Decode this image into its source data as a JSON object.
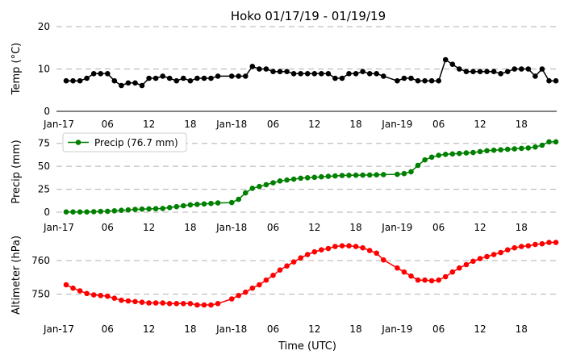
{
  "title": "Hoko 01/17/19 - 01/19/19",
  "x_tick_labels": [
    "Jan-17",
    "06",
    "12",
    "18",
    "Jan-18",
    "06",
    "12",
    "18",
    "Jan-19",
    "06",
    "12",
    "18"
  ],
  "xlabel": "Time (UTC)",
  "colors": {
    "temp": "#000000",
    "precip": "#008000",
    "altimeter": "#ff0000",
    "grid": "#b0b0b0"
  },
  "chart_data": [
    {
      "type": "line",
      "name": "temp",
      "ylabel": "Temp (°C)",
      "ylim": [
        0,
        20
      ],
      "yticks": [
        0,
        10,
        20
      ],
      "x_hours": [
        0,
        1,
        2,
        3,
        4,
        5,
        6,
        7,
        8,
        9,
        10,
        11,
        12,
        13,
        14,
        15,
        16,
        17,
        18,
        19,
        20,
        21,
        22,
        24,
        25,
        26,
        27,
        28,
        29,
        30,
        31,
        32,
        33,
        34,
        35,
        36,
        37,
        38,
        39,
        40,
        41,
        42,
        43,
        44,
        45,
        46,
        48,
        49,
        50,
        51,
        52,
        53,
        54,
        55,
        56,
        57,
        58,
        59,
        60,
        61,
        62,
        63,
        64,
        65,
        66,
        67,
        68,
        69,
        70,
        71
      ],
      "values": [
        7.2,
        7.2,
        7.2,
        7.8,
        8.9,
        8.9,
        8.9,
        7.2,
        6.1,
        6.7,
        6.7,
        6.1,
        7.8,
        7.8,
        8.3,
        7.8,
        7.2,
        7.8,
        7.2,
        7.8,
        7.8,
        7.8,
        8.3,
        8.3,
        8.3,
        8.3,
        10.6,
        10,
        10,
        9.4,
        9.4,
        9.4,
        8.9,
        8.9,
        8.9,
        8.9,
        8.9,
        8.9,
        7.8,
        7.8,
        8.9,
        8.9,
        9.4,
        8.9,
        8.9,
        8.3,
        7.2,
        7.8,
        7.8,
        7.2,
        7.2,
        7.2,
        7.2,
        12.2,
        11.1,
        10,
        9.4,
        9.4,
        9.4,
        9.4,
        9.4,
        8.9,
        9.4,
        10,
        10,
        10,
        8.3,
        10,
        7.2,
        7.2
      ]
    },
    {
      "type": "line",
      "name": "precip",
      "ylabel": "Precip (mm)",
      "ylim": [
        0,
        80
      ],
      "yticks": [
        0,
        25,
        50,
        75
      ],
      "legend": "Precip (76.7 mm)",
      "x_hours": [
        0,
        1,
        2,
        3,
        4,
        5,
        6,
        7,
        8,
        9,
        10,
        11,
        12,
        13,
        14,
        15,
        16,
        17,
        18,
        19,
        20,
        21,
        22,
        24,
        25,
        26,
        27,
        28,
        29,
        30,
        31,
        32,
        33,
        34,
        35,
        36,
        37,
        38,
        39,
        40,
        41,
        42,
        43,
        44,
        45,
        46,
        48,
        49,
        50,
        51,
        52,
        53,
        54,
        55,
        56,
        57,
        58,
        59,
        60,
        61,
        62,
        63,
        64,
        65,
        66,
        67,
        68,
        69,
        70,
        71
      ],
      "values": [
        0.3,
        0.3,
        0.3,
        0.3,
        0.5,
        0.8,
        1,
        1.5,
        2,
        2.5,
        3,
        3.3,
        3.6,
        3.8,
        4,
        5,
        6,
        7,
        8,
        8.5,
        9,
        9.5,
        10,
        10.5,
        14,
        21,
        26,
        28,
        30,
        32,
        34,
        35,
        36,
        37,
        37.5,
        38,
        38.5,
        39,
        39.5,
        40,
        40.2,
        40.3,
        40.4,
        40.5,
        40.7,
        41,
        41.2,
        42,
        44,
        51,
        57,
        60,
        62,
        63,
        63.5,
        64,
        64.5,
        65,
        66,
        67,
        67.5,
        68,
        68.5,
        69,
        69.5,
        70,
        71,
        73,
        76.7,
        76.7
      ]
    },
    {
      "type": "line",
      "name": "altimeter",
      "ylabel": "Altimeter (hPa)",
      "ylim": [
        742,
        766
      ],
      "yticks": [
        750,
        760
      ],
      "x_hours": [
        0,
        1,
        2,
        3,
        4,
        5,
        6,
        7,
        8,
        9,
        10,
        11,
        12,
        13,
        14,
        15,
        16,
        17,
        18,
        19,
        20,
        21,
        22,
        24,
        25,
        26,
        27,
        28,
        29,
        30,
        31,
        32,
        33,
        34,
        35,
        36,
        37,
        38,
        39,
        40,
        41,
        42,
        43,
        44,
        45,
        46,
        48,
        49,
        50,
        51,
        52,
        53,
        54,
        55,
        56,
        57,
        58,
        59,
        60,
        61,
        62,
        63,
        64,
        65,
        66,
        67,
        68,
        69,
        70,
        71
      ],
      "values": [
        752.8,
        751.8,
        751,
        750.2,
        749.8,
        749.6,
        749.4,
        748.8,
        748.2,
        748,
        747.8,
        747.6,
        747.4,
        747.4,
        747.4,
        747.2,
        747.2,
        747.2,
        747.2,
        746.8,
        746.8,
        746.8,
        747.2,
        748.6,
        749.6,
        750.6,
        751.8,
        752.8,
        754.2,
        755.6,
        757.2,
        758.4,
        759.6,
        760.8,
        761.8,
        762.6,
        763.2,
        763.6,
        764.2,
        764.4,
        764.4,
        764.2,
        763.8,
        763,
        762.2,
        760.2,
        757.8,
        756.6,
        755.4,
        754.2,
        754.2,
        754,
        754.2,
        755.2,
        756.6,
        757.8,
        758.8,
        759.8,
        760.6,
        761.2,
        761.8,
        762.4,
        763.2,
        763.8,
        764.2,
        764.4,
        764.8,
        765,
        765.4,
        765.4
      ]
    }
  ]
}
